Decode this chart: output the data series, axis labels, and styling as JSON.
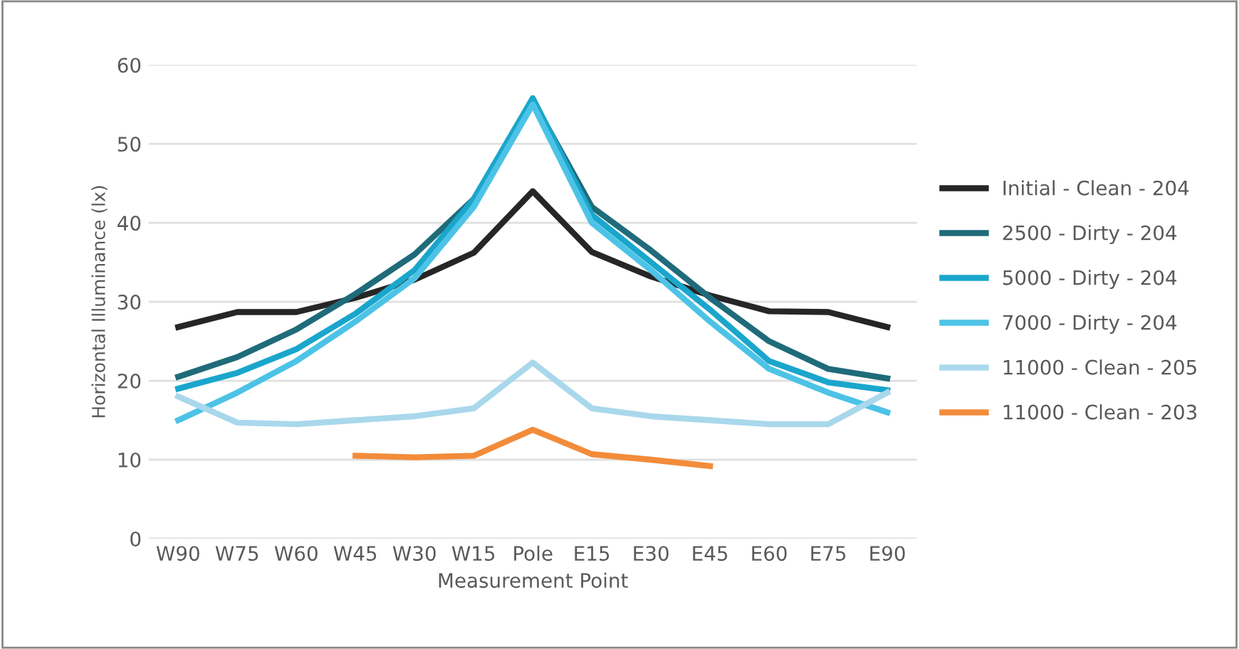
{
  "chart_data": {
    "type": "line",
    "xlabel": "Measurement Point",
    "ylabel": "Horizontal Illuminance (lx)",
    "categories": [
      "W90",
      "W75",
      "W60",
      "W45",
      "W30",
      "W15",
      "Pole",
      "E15",
      "E30",
      "E45",
      "E60",
      "E75",
      "E90"
    ],
    "ylim": [
      0,
      60
    ],
    "yticks": [
      0,
      10,
      20,
      30,
      40,
      50,
      60
    ],
    "grid": "y",
    "legend": "right",
    "marker": "none",
    "line_style": "solid",
    "series": [
      {
        "name": "Initial - Clean - 204",
        "color": "#262626",
        "values": [
          26.8,
          28.7,
          28.7,
          30.5,
          32.8,
          36.2,
          44,
          36.3,
          33.2,
          30.8,
          28.8,
          28.7,
          26.8
        ]
      },
      {
        "name": "2500 - Dirty - 204",
        "color": "#1f6b7a",
        "values": [
          20.5,
          23,
          26.5,
          31,
          36,
          43,
          55.5,
          42,
          36.5,
          30.5,
          25,
          21.5,
          20.3
        ]
      },
      {
        "name": "5000 - Dirty - 204",
        "color": "#1aa6cc",
        "values": [
          19,
          21,
          24,
          28.5,
          34,
          43,
          55.8,
          41,
          35,
          29,
          22.5,
          19.8,
          18.8
        ]
      },
      {
        "name": "7000 - Dirty - 204",
        "color": "#4cc3e6",
        "values": [
          15,
          18.5,
          22.5,
          27.5,
          33,
          42,
          55,
          40,
          34,
          27.5,
          21.5,
          18.5,
          16
        ]
      },
      {
        "name": "11000 - Clean - 205",
        "color": "#a9d8ec",
        "values": [
          18,
          14.7,
          14.5,
          15,
          15.5,
          16.5,
          22.3,
          16.5,
          15.5,
          15,
          14.5,
          14.5,
          18.5
        ]
      },
      {
        "name": "11000 - Clean - 203",
        "color": "#f28c3a",
        "values": [
          null,
          null,
          null,
          10.5,
          10.3,
          10.5,
          13.8,
          10.7,
          10,
          9.2,
          null,
          null,
          null
        ]
      }
    ]
  }
}
